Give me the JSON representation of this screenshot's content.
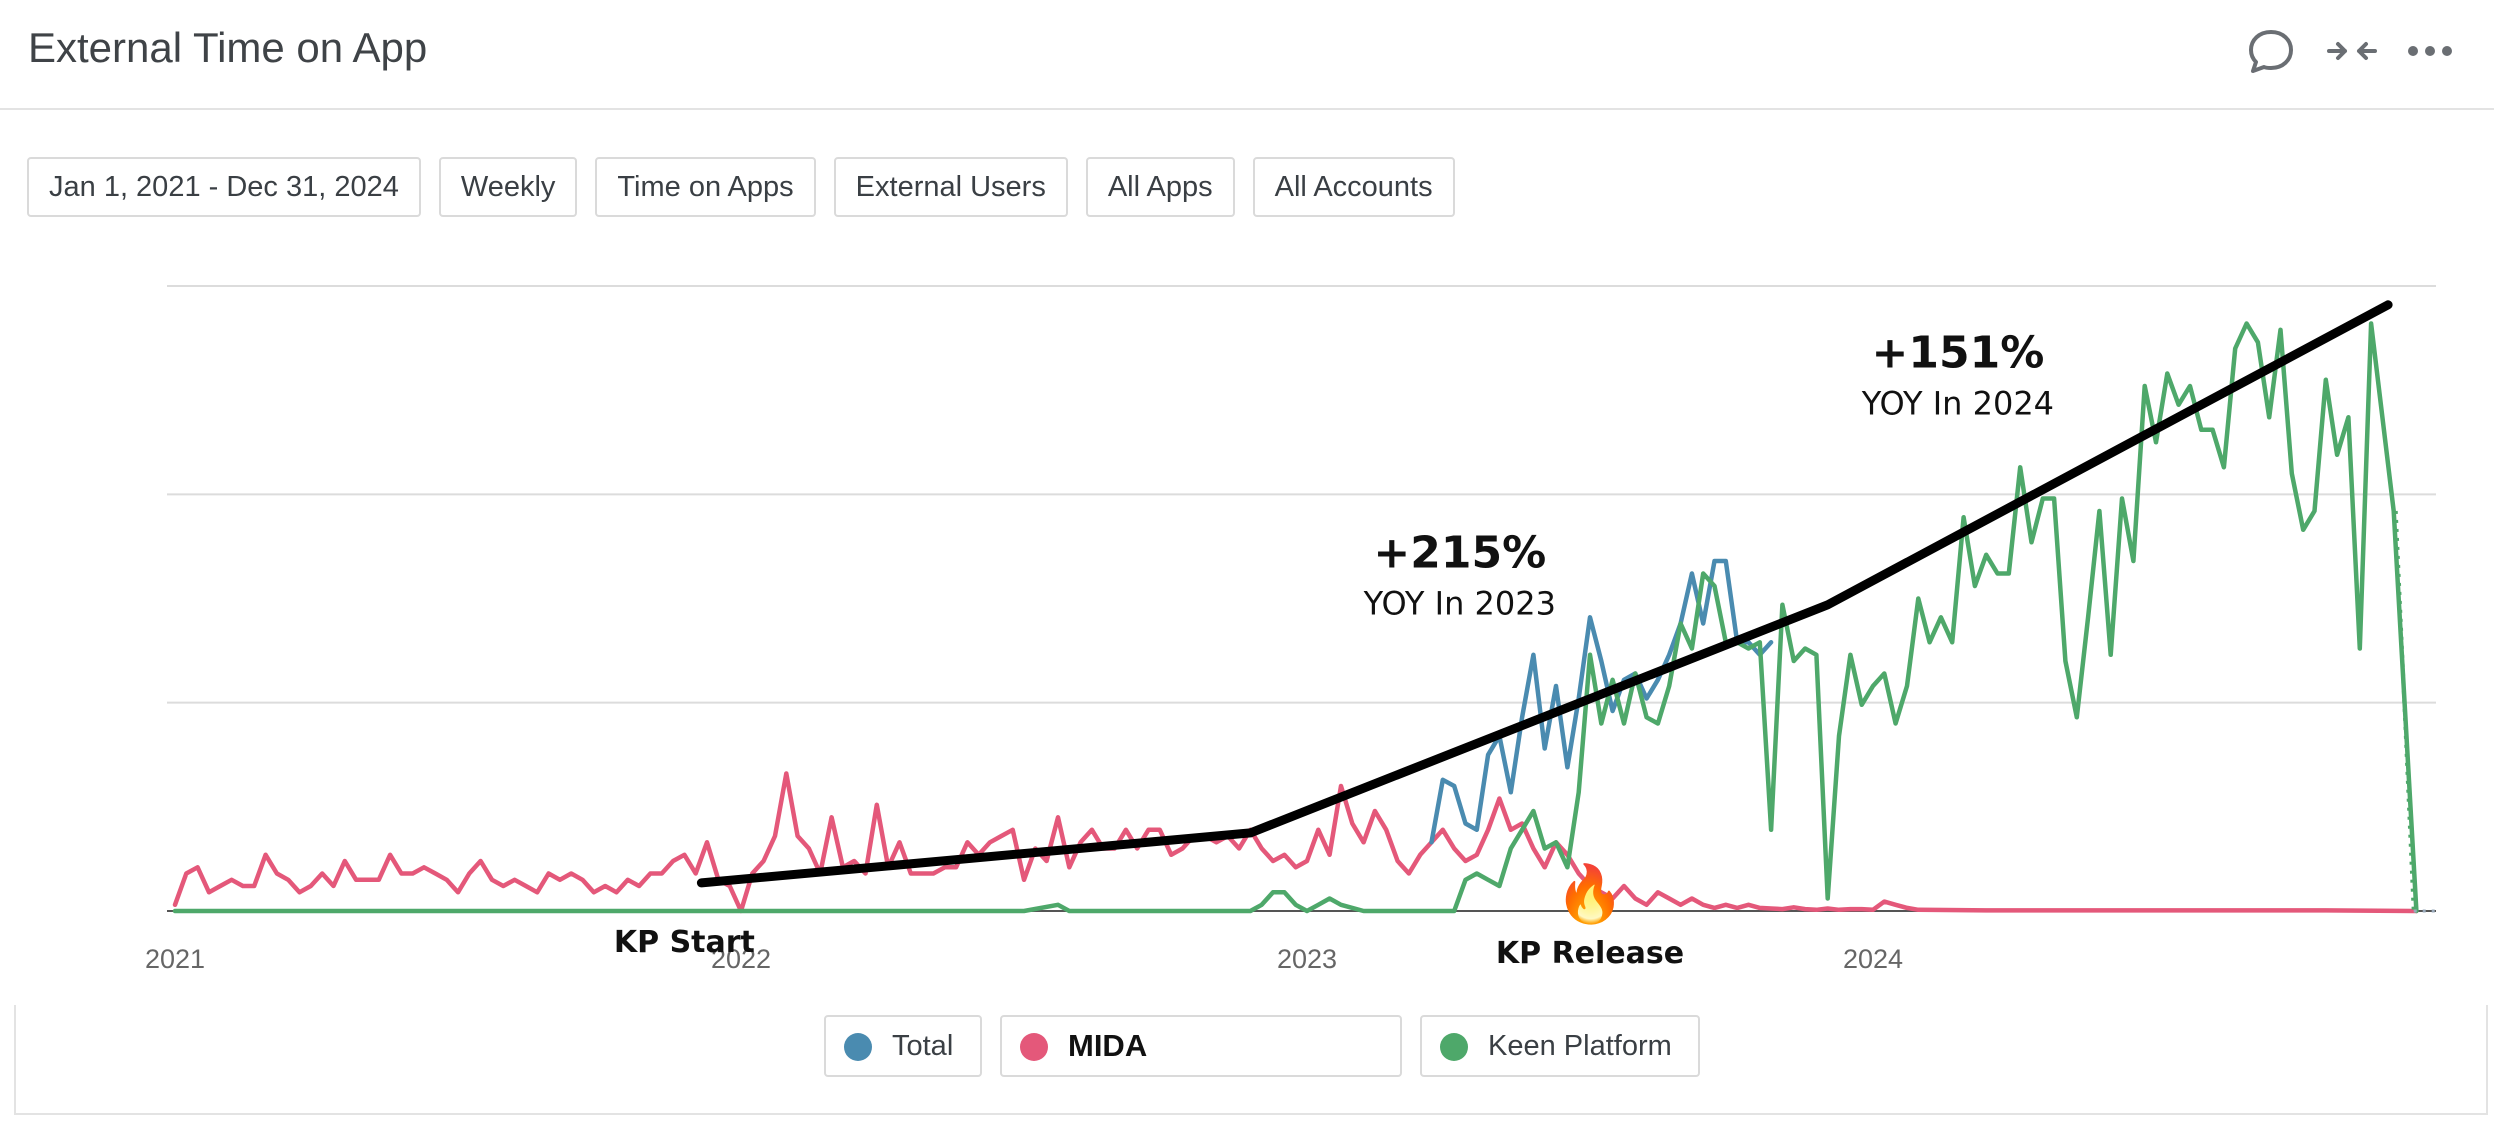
{
  "header": {
    "title": "External Time on App",
    "icons": [
      "comment-icon",
      "collapse-icon",
      "more-icon"
    ]
  },
  "filters": [
    {
      "label": "Jan 1, 2021 - Dec 31, 2024"
    },
    {
      "label": "Weekly"
    },
    {
      "label": "Time on Apps"
    },
    {
      "label": "External Users"
    },
    {
      "label": "All Apps"
    },
    {
      "label": "All Accounts"
    }
  ],
  "legend": {
    "items": [
      {
        "label": "Total",
        "color": "#4a8bb0"
      },
      {
        "label": "MIDA",
        "color": "#e4587a"
      },
      {
        "label": "Keen Platform",
        "color": "#4ea86a"
      }
    ]
  },
  "chart_data": {
    "type": "line",
    "x_ticks": [
      "2021",
      "2022",
      "2023",
      "2024"
    ],
    "y_gridlines": 4,
    "ylim": [
      0,
      100
    ],
    "colors": {
      "Total": "#4a8bb0",
      "MIDA": "#e4587a",
      "Keen Platform": "#4ea86a",
      "trend": "#000000",
      "grid": "#dcdcdc",
      "axis": "#555555"
    },
    "series": [
      {
        "name": "MIDA",
        "points": [
          [
            2021.0,
            1
          ],
          [
            2021.02,
            6
          ],
          [
            2021.04,
            7
          ],
          [
            2021.06,
            3
          ],
          [
            2021.08,
            4
          ],
          [
            2021.1,
            5
          ],
          [
            2021.12,
            4
          ],
          [
            2021.14,
            4
          ],
          [
            2021.16,
            9
          ],
          [
            2021.18,
            6
          ],
          [
            2021.2,
            5
          ],
          [
            2021.22,
            3
          ],
          [
            2021.24,
            4
          ],
          [
            2021.26,
            6
          ],
          [
            2021.28,
            4
          ],
          [
            2021.3,
            8
          ],
          [
            2021.32,
            5
          ],
          [
            2021.34,
            5
          ],
          [
            2021.36,
            5
          ],
          [
            2021.38,
            9
          ],
          [
            2021.4,
            6
          ],
          [
            2021.42,
            6
          ],
          [
            2021.44,
            7
          ],
          [
            2021.46,
            6
          ],
          [
            2021.48,
            5
          ],
          [
            2021.5,
            3
          ],
          [
            2021.52,
            6
          ],
          [
            2021.54,
            8
          ],
          [
            2021.56,
            5
          ],
          [
            2021.58,
            4
          ],
          [
            2021.6,
            5
          ],
          [
            2021.62,
            4
          ],
          [
            2021.64,
            3
          ],
          [
            2021.66,
            6
          ],
          [
            2021.68,
            5
          ],
          [
            2021.7,
            6
          ],
          [
            2021.72,
            5
          ],
          [
            2021.74,
            3
          ],
          [
            2021.76,
            4
          ],
          [
            2021.78,
            3
          ],
          [
            2021.8,
            5
          ],
          [
            2021.82,
            4
          ],
          [
            2021.84,
            6
          ],
          [
            2021.86,
            6
          ],
          [
            2021.88,
            8
          ],
          [
            2021.9,
            9
          ],
          [
            2021.92,
            6
          ],
          [
            2021.94,
            11
          ],
          [
            2021.96,
            5
          ],
          [
            2021.98,
            4
          ],
          [
            2022.0,
            0
          ],
          [
            2022.02,
            6
          ],
          [
            2022.04,
            8
          ],
          [
            2022.06,
            12
          ],
          [
            2022.08,
            22
          ],
          [
            2022.1,
            12
          ],
          [
            2022.12,
            10
          ],
          [
            2022.14,
            6
          ],
          [
            2022.16,
            15
          ],
          [
            2022.18,
            7
          ],
          [
            2022.2,
            8
          ],
          [
            2022.22,
            6
          ],
          [
            2022.24,
            17
          ],
          [
            2022.26,
            7
          ],
          [
            2022.28,
            11
          ],
          [
            2022.3,
            6
          ],
          [
            2022.32,
            6
          ],
          [
            2022.34,
            6
          ],
          [
            2022.36,
            7
          ],
          [
            2022.38,
            7
          ],
          [
            2022.4,
            11
          ],
          [
            2022.42,
            9
          ],
          [
            2022.44,
            11
          ],
          [
            2022.46,
            12
          ],
          [
            2022.48,
            13
          ],
          [
            2022.5,
            5
          ],
          [
            2022.52,
            10
          ],
          [
            2022.54,
            8
          ],
          [
            2022.56,
            15
          ],
          [
            2022.58,
            7
          ],
          [
            2022.6,
            11
          ],
          [
            2022.62,
            13
          ],
          [
            2022.64,
            10
          ],
          [
            2022.66,
            10
          ],
          [
            2022.68,
            13
          ],
          [
            2022.7,
            10
          ],
          [
            2022.72,
            13
          ],
          [
            2022.74,
            13
          ],
          [
            2022.76,
            9
          ],
          [
            2022.78,
            10
          ],
          [
            2022.8,
            12
          ],
          [
            2022.82,
            12
          ],
          [
            2022.84,
            11
          ],
          [
            2022.86,
            12
          ],
          [
            2022.88,
            10
          ],
          [
            2022.9,
            13
          ],
          [
            2022.92,
            10
          ],
          [
            2022.94,
            8
          ],
          [
            2022.96,
            9
          ],
          [
            2022.98,
            7
          ],
          [
            2023.0,
            8
          ],
          [
            2023.02,
            13
          ],
          [
            2023.04,
            9
          ],
          [
            2023.06,
            20
          ],
          [
            2023.08,
            14
          ],
          [
            2023.1,
            11
          ],
          [
            2023.12,
            16
          ],
          [
            2023.14,
            13
          ],
          [
            2023.16,
            8
          ],
          [
            2023.18,
            6
          ],
          [
            2023.2,
            9
          ],
          [
            2023.22,
            11
          ],
          [
            2023.24,
            13
          ],
          [
            2023.26,
            10
          ],
          [
            2023.28,
            8
          ],
          [
            2023.3,
            9
          ],
          [
            2023.32,
            13
          ],
          [
            2023.34,
            18
          ],
          [
            2023.36,
            13
          ],
          [
            2023.38,
            14
          ],
          [
            2023.4,
            10
          ],
          [
            2023.42,
            7
          ],
          [
            2023.44,
            11
          ],
          [
            2023.46,
            9
          ],
          [
            2023.48,
            6
          ],
          [
            2023.5,
            4
          ],
          [
            2023.52,
            3
          ],
          [
            2023.54,
            2
          ],
          [
            2023.56,
            4
          ],
          [
            2023.58,
            2
          ],
          [
            2023.6,
            1
          ],
          [
            2023.62,
            3
          ],
          [
            2023.64,
            2
          ],
          [
            2023.66,
            1
          ],
          [
            2023.68,
            2
          ],
          [
            2023.7,
            1
          ],
          [
            2023.72,
            0.5
          ],
          [
            2023.74,
            1
          ],
          [
            2023.76,
            0.5
          ],
          [
            2023.78,
            1
          ],
          [
            2023.8,
            0.5
          ],
          [
            2023.82,
            0.4
          ],
          [
            2023.84,
            0.3
          ],
          [
            2023.86,
            0.6
          ],
          [
            2023.88,
            0.3
          ],
          [
            2023.9,
            0.2
          ],
          [
            2023.92,
            0.4
          ],
          [
            2023.94,
            0.2
          ],
          [
            2023.96,
            0.3
          ],
          [
            2023.98,
            0.3
          ],
          [
            2024.0,
            0.2
          ],
          [
            2024.02,
            1.5
          ],
          [
            2024.04,
            1
          ],
          [
            2024.06,
            0.5
          ],
          [
            2024.08,
            0.2
          ],
          [
            2024.2,
            0.1
          ],
          [
            2024.4,
            0.1
          ],
          [
            2024.6,
            0.1
          ],
          [
            2024.8,
            0.1
          ],
          [
            2024.96,
            0
          ]
        ]
      },
      {
        "name": "Total",
        "points": [
          [
            2023.22,
            11
          ],
          [
            2023.24,
            21
          ],
          [
            2023.26,
            20
          ],
          [
            2023.28,
            14
          ],
          [
            2023.3,
            13
          ],
          [
            2023.32,
            25
          ],
          [
            2023.34,
            28
          ],
          [
            2023.36,
            19
          ],
          [
            2023.38,
            31
          ],
          [
            2023.4,
            41
          ],
          [
            2023.42,
            26
          ],
          [
            2023.44,
            36
          ],
          [
            2023.46,
            23
          ],
          [
            2023.48,
            34
          ],
          [
            2023.5,
            47
          ],
          [
            2023.52,
            40
          ],
          [
            2023.54,
            32
          ],
          [
            2023.56,
            37
          ],
          [
            2023.58,
            38
          ],
          [
            2023.6,
            34
          ],
          [
            2023.62,
            37
          ],
          [
            2023.64,
            41
          ],
          [
            2023.66,
            46
          ],
          [
            2023.68,
            54
          ],
          [
            2023.7,
            46
          ],
          [
            2023.72,
            56
          ],
          [
            2023.74,
            56
          ],
          [
            2023.76,
            43
          ],
          [
            2023.78,
            43
          ],
          [
            2023.8,
            41
          ],
          [
            2023.82,
            43
          ]
        ]
      },
      {
        "name": "Keen Platform",
        "points": [
          [
            2021.0,
            0
          ],
          [
            2022.5,
            0
          ],
          [
            2022.56,
            1
          ],
          [
            2022.58,
            0
          ],
          [
            2022.9,
            0
          ],
          [
            2022.92,
            1
          ],
          [
            2022.94,
            3
          ],
          [
            2022.96,
            3
          ],
          [
            2022.98,
            1
          ],
          [
            2023.0,
            0
          ],
          [
            2023.02,
            1
          ],
          [
            2023.04,
            2
          ],
          [
            2023.06,
            1
          ],
          [
            2023.1,
            0
          ],
          [
            2023.26,
            0
          ],
          [
            2023.28,
            5
          ],
          [
            2023.3,
            6
          ],
          [
            2023.32,
            5
          ],
          [
            2023.34,
            4
          ],
          [
            2023.36,
            10
          ],
          [
            2023.38,
            13
          ],
          [
            2023.4,
            16
          ],
          [
            2023.42,
            10
          ],
          [
            2023.44,
            11
          ],
          [
            2023.46,
            7
          ],
          [
            2023.48,
            19
          ],
          [
            2023.5,
            41
          ],
          [
            2023.52,
            30
          ],
          [
            2023.54,
            37
          ],
          [
            2023.56,
            30
          ],
          [
            2023.58,
            38
          ],
          [
            2023.6,
            31
          ],
          [
            2023.62,
            30
          ],
          [
            2023.64,
            36
          ],
          [
            2023.66,
            46
          ],
          [
            2023.68,
            42
          ],
          [
            2023.7,
            54
          ],
          [
            2023.72,
            52
          ],
          [
            2023.74,
            43
          ],
          [
            2023.76,
            43
          ],
          [
            2023.78,
            42
          ],
          [
            2023.8,
            43
          ],
          [
            2023.82,
            13
          ],
          [
            2023.84,
            49
          ],
          [
            2023.86,
            40
          ],
          [
            2023.88,
            42
          ],
          [
            2023.9,
            41
          ],
          [
            2023.92,
            2
          ],
          [
            2023.94,
            28
          ],
          [
            2023.96,
            41
          ],
          [
            2023.98,
            33
          ],
          [
            2024.0,
            36
          ],
          [
            2024.02,
            38
          ],
          [
            2024.04,
            30
          ],
          [
            2024.06,
            36
          ],
          [
            2024.08,
            50
          ],
          [
            2024.1,
            43
          ],
          [
            2024.12,
            47
          ],
          [
            2024.14,
            43
          ],
          [
            2024.16,
            63
          ],
          [
            2024.18,
            52
          ],
          [
            2024.2,
            57
          ],
          [
            2024.22,
            54
          ],
          [
            2024.24,
            54
          ],
          [
            2024.26,
            71
          ],
          [
            2024.28,
            59
          ],
          [
            2024.3,
            66
          ],
          [
            2024.32,
            66
          ],
          [
            2024.34,
            40
          ],
          [
            2024.36,
            31
          ],
          [
            2024.38,
            47
          ],
          [
            2024.4,
            64
          ],
          [
            2024.42,
            41
          ],
          [
            2024.44,
            66
          ],
          [
            2024.46,
            56
          ],
          [
            2024.48,
            84
          ],
          [
            2024.5,
            75
          ],
          [
            2024.52,
            86
          ],
          [
            2024.54,
            81
          ],
          [
            2024.56,
            84
          ],
          [
            2024.58,
            77
          ],
          [
            2024.6,
            77
          ],
          [
            2024.62,
            71
          ],
          [
            2024.64,
            90
          ],
          [
            2024.66,
            94
          ],
          [
            2024.68,
            91
          ],
          [
            2024.7,
            79
          ],
          [
            2024.72,
            93
          ],
          [
            2024.74,
            70
          ],
          [
            2024.76,
            61
          ],
          [
            2024.78,
            64
          ],
          [
            2024.8,
            85
          ],
          [
            2024.82,
            73
          ],
          [
            2024.84,
            79
          ],
          [
            2024.86,
            42
          ],
          [
            2024.88,
            94
          ],
          [
            2024.92,
            64
          ],
          [
            2024.96,
            0
          ]
        ]
      }
    ],
    "trend_line": [
      [
        2021.93,
        4.5
      ],
      [
        2022.9,
        12.5
      ],
      [
        2023.92,
        49
      ],
      [
        2024.91,
        97
      ]
    ],
    "annotations": [
      {
        "value": "+215%",
        "subtitle": "YOY In 2023",
        "x": 2023.27,
        "y": 55
      },
      {
        "value": "+151%",
        "subtitle": "YOY In 2024",
        "x": 2024.15,
        "y": 87
      }
    ],
    "event_labels": [
      {
        "text": "KP Start",
        "x": 2021.9
      },
      {
        "text": "KP Release",
        "x": 2023.5,
        "marker": "🔥"
      }
    ]
  }
}
